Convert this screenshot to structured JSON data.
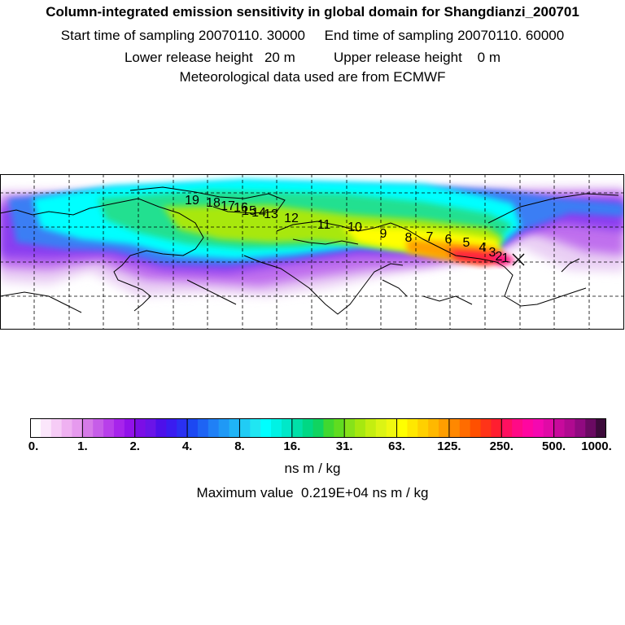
{
  "header": {
    "title": "Column-integrated emission sensitivity in global domain for Shangdianzi_200701",
    "sampling_line": "Start time of sampling 20070110. 30000     End time of sampling 20070110. 60000",
    "release_line": "Lower release height   20 m          Upper release height    0 m",
    "met_line": "Meteorological data used are from ECMWF"
  },
  "map": {
    "trajectory_labels": [
      "1",
      "2",
      "3",
      "4",
      "5",
      "6",
      "7",
      "8",
      "9",
      "10",
      "11",
      "12",
      "13",
      "14",
      "15",
      "16",
      "17",
      "18",
      "19"
    ],
    "station_marker": "Shangdianzi"
  },
  "colorbar": {
    "tick_labels": [
      "0.",
      "1.",
      "2.",
      "4.",
      "8.",
      "16.",
      "31.",
      "63.",
      "125.",
      "250.",
      "500.",
      "1000."
    ],
    "colors": [
      "#ffffff",
      "#fbe6fb",
      "#f6ccf6",
      "#efb1f1",
      "#e69aee",
      "#d67ae8",
      "#c65de8",
      "#b83fea",
      "#a724eb",
      "#9212ea",
      "#7b0ee6",
      "#6a14e8",
      "#4d10ea",
      "#3a1cf0",
      "#2a30f2",
      "#1c48f2",
      "#1e64f4",
      "#2080f6",
      "#1f99f6",
      "#20b4f6",
      "#21ccf5",
      "#20e6f2",
      "#00ffff",
      "#00f2e4",
      "#00e8c8",
      "#00e0a8",
      "#00d884",
      "#10d460",
      "#40d830",
      "#60dc20",
      "#86e21a",
      "#a6e810",
      "#c4ee10",
      "#dcf414",
      "#f0f810",
      "#ffff00",
      "#ffe800",
      "#ffd000",
      "#ffb800",
      "#ff9e00",
      "#ff8800",
      "#ff6c00",
      "#ff5000",
      "#ff3418",
      "#ff1e30",
      "#ff1060",
      "#ff0a86",
      "#ff06a0",
      "#f408b0",
      "#e00aa6",
      "#c80a9c",
      "#b00a90",
      "#900a80",
      "#6a0a62",
      "#3c0a3a"
    ],
    "unit": "ns m / kg",
    "max_label": "Maximum value  0.219E+04 ns m / kg"
  }
}
